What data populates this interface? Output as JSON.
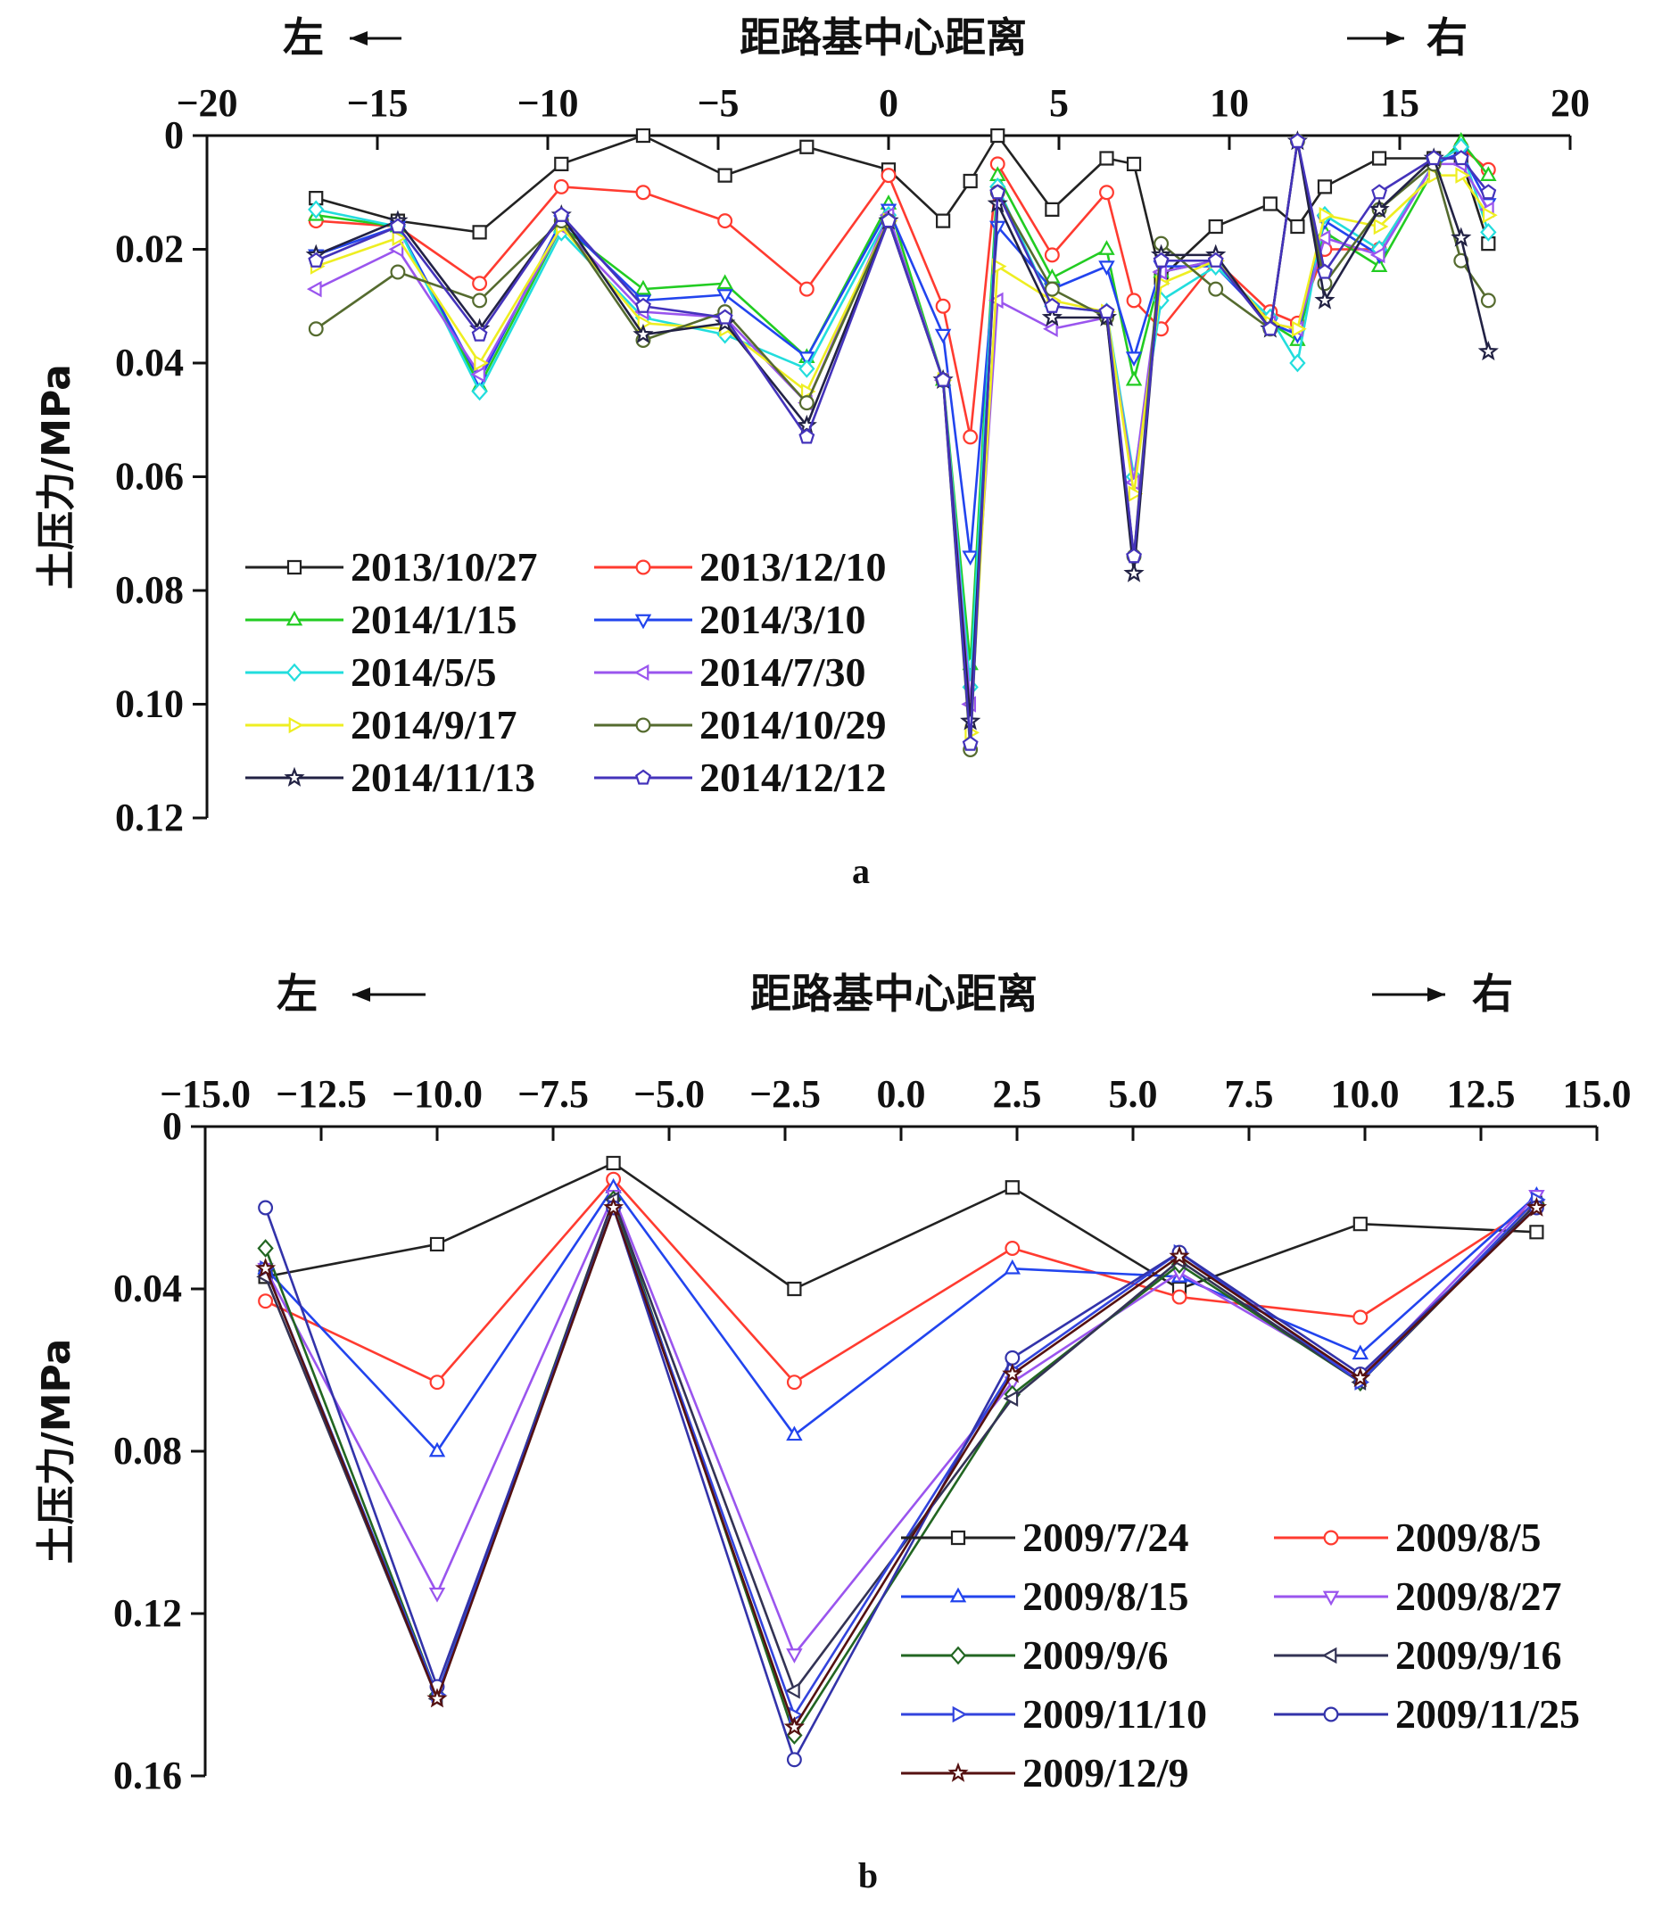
{
  "chart_data": [
    {
      "type": "line",
      "panel_label": "a",
      "xlabel": "距路基中心距离",
      "ylabel": "土压力/MPa",
      "left_label": "左",
      "right_label": "右",
      "xlim": [
        -20,
        20
      ],
      "ylim": [
        0,
        0.12
      ],
      "y_inverted": true,
      "x_axis_position": "top",
      "x_ticks": [
        -20,
        -15,
        -10,
        -5,
        0,
        5,
        10,
        15,
        20
      ],
      "x_tick_labels": [
        "−20",
        "−15",
        "−10",
        "−5",
        "0",
        "5",
        "10",
        "15",
        "20"
      ],
      "y_ticks": [
        0,
        0.02,
        0.04,
        0.06,
        0.08,
        0.1,
        0.12
      ],
      "y_tick_labels": [
        "0",
        "0.02",
        "0.04",
        "0.06",
        "0.08",
        "0.10",
        "0.12"
      ],
      "legend_position": "lower-left",
      "legend_columns": 2,
      "x": [
        -16.8,
        -14.4,
        -12,
        -9.6,
        -7.2,
        -4.8,
        -2.4,
        0,
        1.6,
        2.4,
        3.2,
        4.8,
        6.4,
        7.2,
        8.0,
        9.6,
        11.2,
        12.0,
        12.8,
        14.4,
        16.0,
        16.8,
        17.6
      ],
      "series": [
        {
          "name": "2013/10/27",
          "color": "#222222",
          "marker": "square",
          "values": [
            0.011,
            0.015,
            0.017,
            0.005,
            0.0,
            0.007,
            0.002,
            0.006,
            0.015,
            0.008,
            0.0,
            0.013,
            0.004,
            0.005,
            0.025,
            0.016,
            0.012,
            0.016,
            0.009,
            0.004,
            0.004,
            0.004,
            0.019
          ]
        },
        {
          "name": "2013/12/10",
          "color": "#ff3b30",
          "marker": "circle",
          "values": [
            0.015,
            0.016,
            0.026,
            0.009,
            0.01,
            0.015,
            0.027,
            0.007,
            0.03,
            0.053,
            0.005,
            0.021,
            0.01,
            0.029,
            0.034,
            0.022,
            0.031,
            0.033,
            0.02,
            0.02,
            0.005,
            0.002,
            0.006
          ]
        },
        {
          "name": "2014/1/15",
          "color": "#22cc22",
          "marker": "triangle-up",
          "values": [
            0.014,
            0.016,
            0.044,
            0.016,
            0.027,
            0.026,
            0.039,
            0.012,
            0.043,
            0.093,
            0.007,
            0.025,
            0.02,
            0.043,
            0.024,
            0.022,
            0.033,
            0.036,
            0.017,
            0.023,
            0.006,
            0.001,
            0.007
          ]
        },
        {
          "name": "2014/3/10",
          "color": "#2244ee",
          "marker": "triangle-down",
          "values": [
            0.021,
            0.016,
            0.043,
            0.015,
            0.029,
            0.028,
            0.039,
            0.013,
            0.035,
            0.074,
            0.016,
            0.027,
            0.023,
            0.039,
            0.023,
            0.023,
            0.033,
            0.035,
            0.015,
            0.021,
            0.005,
            0.003,
            0.012
          ]
        },
        {
          "name": "2014/5/5",
          "color": "#22dddd",
          "marker": "diamond",
          "values": [
            0.013,
            0.016,
            0.045,
            0.017,
            0.032,
            0.035,
            0.041,
            0.014,
            0.043,
            0.097,
            0.009,
            0.03,
            0.031,
            0.06,
            0.029,
            0.023,
            0.032,
            0.04,
            0.014,
            0.02,
            0.005,
            0.002,
            0.017
          ]
        },
        {
          "name": "2014/7/30",
          "color": "#9a55ee",
          "marker": "triangle-left",
          "values": [
            0.027,
            0.02,
            0.042,
            0.016,
            0.031,
            0.032,
            0.047,
            0.014,
            0.043,
            0.1,
            0.029,
            0.034,
            0.032,
            0.061,
            0.024,
            0.022,
            0.033,
            0.034,
            0.018,
            0.021,
            0.005,
            0.005,
            0.013
          ]
        },
        {
          "name": "2014/9/17",
          "color": "#eeee22",
          "marker": "triangle-right",
          "values": [
            0.023,
            0.018,
            0.04,
            0.016,
            0.033,
            0.034,
            0.045,
            0.015,
            0.043,
            0.105,
            0.023,
            0.029,
            0.031,
            0.063,
            0.026,
            0.022,
            0.033,
            0.034,
            0.014,
            0.016,
            0.007,
            0.007,
            0.014
          ]
        },
        {
          "name": "2014/10/29",
          "color": "#556b2f",
          "marker": "circle",
          "values": [
            0.034,
            0.024,
            0.029,
            0.015,
            0.036,
            0.031,
            0.047,
            0.015,
            0.043,
            0.108,
            0.01,
            0.027,
            0.032,
            0.074,
            0.019,
            0.027,
            0.034,
            0.001,
            0.026,
            0.013,
            0.005,
            0.022,
            0.029
          ]
        },
        {
          "name": "2014/11/13",
          "color": "#222244",
          "marker": "star",
          "values": [
            0.021,
            0.015,
            0.034,
            0.014,
            0.035,
            0.033,
            0.051,
            0.015,
            0.043,
            0.103,
            0.012,
            0.032,
            0.032,
            0.077,
            0.021,
            0.021,
            0.034,
            0.001,
            0.029,
            0.013,
            0.004,
            0.018,
            0.038
          ]
        },
        {
          "name": "2014/12/12",
          "color": "#4433bb",
          "marker": "pentagon",
          "values": [
            0.022,
            0.016,
            0.035,
            0.014,
            0.03,
            0.032,
            0.053,
            0.015,
            0.043,
            0.107,
            0.01,
            0.03,
            0.031,
            0.074,
            0.022,
            0.022,
            0.034,
            0.001,
            0.024,
            0.01,
            0.004,
            0.004,
            0.01
          ]
        }
      ]
    },
    {
      "type": "line",
      "panel_label": "b",
      "xlabel": "距路基中心距离",
      "ylabel": "土压力/MPa",
      "left_label": "左",
      "right_label": "右",
      "xlim": [
        -15,
        15
      ],
      "ylim": [
        0,
        0.16
      ],
      "y_inverted": true,
      "x_axis_position": "top",
      "x_ticks": [
        -15,
        -12.5,
        -10,
        -7.5,
        -5,
        -2.5,
        0,
        2.5,
        5,
        7.5,
        10,
        12.5,
        15
      ],
      "x_tick_labels": [
        "−15.0",
        "−12.5",
        "−10.0",
        "−7.5",
        "−5.0",
        "−2.5",
        "0.0",
        "2.5",
        "5.0",
        "7.5",
        "10.0",
        "12.5",
        "15.0"
      ],
      "y_ticks": [
        0,
        0.04,
        0.08,
        0.12,
        0.16
      ],
      "y_tick_labels": [
        "0",
        "0.04",
        "0.08",
        "0.12",
        "0.16"
      ],
      "legend_position": "lower-right",
      "legend_columns": 2,
      "x": [
        -13.7,
        -10.0,
        -6.2,
        -2.3,
        2.4,
        6.0,
        9.9,
        13.7
      ],
      "series": [
        {
          "name": "2009/7/24",
          "color": "#222222",
          "marker": "square",
          "values": [
            0.037,
            0.029,
            0.009,
            0.04,
            0.015,
            0.04,
            0.024,
            0.026
          ]
        },
        {
          "name": "2009/8/5",
          "color": "#ff3b30",
          "marker": "circle",
          "values": [
            0.043,
            0.063,
            0.013,
            0.063,
            0.03,
            0.042,
            0.047,
            0.019
          ]
        },
        {
          "name": "2009/8/15",
          "color": "#2244ee",
          "marker": "triangle-up",
          "values": [
            0.035,
            0.08,
            0.015,
            0.076,
            0.035,
            0.037,
            0.056,
            0.017
          ]
        },
        {
          "name": "2009/8/27",
          "color": "#9a55ee",
          "marker": "triangle-down",
          "values": [
            0.035,
            0.115,
            0.017,
            0.13,
            0.063,
            0.036,
            0.062,
            0.017
          ]
        },
        {
          "name": "2009/9/6",
          "color": "#226622",
          "marker": "diamond",
          "values": [
            0.03,
            0.14,
            0.018,
            0.15,
            0.066,
            0.034,
            0.063,
            0.019
          ]
        },
        {
          "name": "2009/9/16",
          "color": "#333355",
          "marker": "triangle-left",
          "values": [
            0.037,
            0.141,
            0.018,
            0.139,
            0.067,
            0.033,
            0.063,
            0.019
          ]
        },
        {
          "name": "2009/11/10",
          "color": "#3344dd",
          "marker": "triangle-right",
          "values": [
            0.035,
            0.14,
            0.02,
            0.145,
            0.06,
            0.031,
            0.063,
            0.018
          ]
        },
        {
          "name": "2009/11/25",
          "color": "#3333aa",
          "marker": "circle",
          "values": [
            0.02,
            0.138,
            0.02,
            0.156,
            0.057,
            0.031,
            0.061,
            0.02
          ]
        },
        {
          "name": "2009/12/9",
          "color": "#551111",
          "marker": "star",
          "values": [
            0.035,
            0.141,
            0.02,
            0.148,
            0.061,
            0.032,
            0.062,
            0.02
          ]
        }
      ]
    }
  ]
}
